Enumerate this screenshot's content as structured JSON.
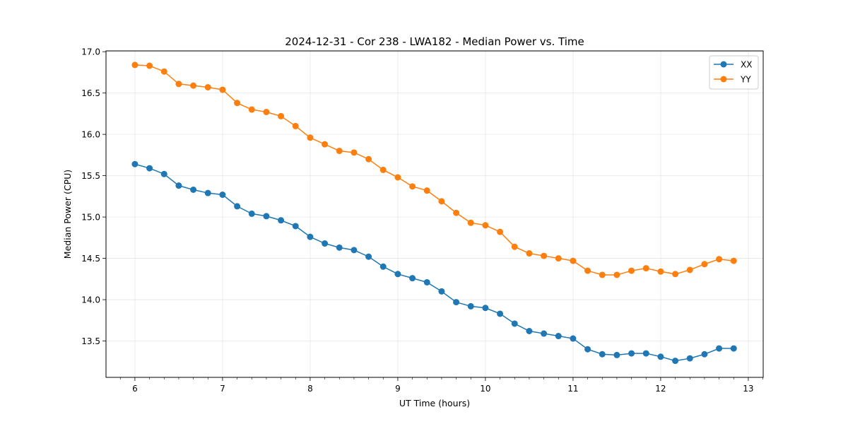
{
  "chart_data": {
    "type": "line",
    "title": "2024-12-31 - Cor 238 - LWA182 - Median Power vs. Time",
    "xlabel": "UT Time (hours)",
    "ylabel": "Median Power (CPU)",
    "xlim": [
      5.67,
      13.17
    ],
    "ylim": [
      13.06,
      17.01
    ],
    "xticks": [
      6,
      7,
      8,
      9,
      10,
      11,
      12,
      13
    ],
    "xtick_labels": [
      "6",
      "7",
      "8",
      "9",
      "10",
      "11",
      "12",
      "13"
    ],
    "yticks": [
      13.5,
      14.0,
      14.5,
      15.0,
      15.5,
      16.0,
      16.5,
      17.0
    ],
    "ytick_labels": [
      "13.5",
      "14.0",
      "14.5",
      "15.0",
      "15.5",
      "16.0",
      "16.5",
      "17.0"
    ],
    "grid": true,
    "legend_position": "top-right",
    "x": [
      6.0,
      6.1667,
      6.3333,
      6.5,
      6.6667,
      6.8333,
      7.0,
      7.1667,
      7.3333,
      7.5,
      7.6667,
      7.8333,
      8.0,
      8.1667,
      8.3333,
      8.5,
      8.6667,
      8.8333,
      9.0,
      9.1667,
      9.3333,
      9.5,
      9.6667,
      9.8333,
      10.0,
      10.1667,
      10.3333,
      10.5,
      10.6667,
      10.8333,
      11.0,
      11.1667,
      11.3333,
      11.5,
      11.6667,
      11.8333,
      12.0,
      12.1667,
      12.3333,
      12.5,
      12.6667,
      12.8333
    ],
    "series": [
      {
        "name": "XX",
        "color": "#1f77b4",
        "values": [
          15.64,
          15.59,
          15.52,
          15.38,
          15.33,
          15.29,
          15.27,
          15.13,
          15.04,
          15.01,
          14.96,
          14.89,
          14.76,
          14.68,
          14.63,
          14.6,
          14.52,
          14.4,
          14.31,
          14.26,
          14.21,
          14.1,
          13.97,
          13.92,
          13.9,
          13.83,
          13.71,
          13.62,
          13.59,
          13.56,
          13.53,
          13.4,
          13.34,
          13.33,
          13.35,
          13.35,
          13.31,
          13.26,
          13.29,
          13.34,
          13.41,
          13.41
        ]
      },
      {
        "name": "YY",
        "color": "#ff7f0e",
        "values": [
          16.84,
          16.83,
          16.76,
          16.61,
          16.59,
          16.57,
          16.54,
          16.38,
          16.3,
          16.27,
          16.22,
          16.1,
          15.96,
          15.88,
          15.8,
          15.78,
          15.7,
          15.57,
          15.48,
          15.37,
          15.32,
          15.19,
          15.05,
          14.93,
          14.9,
          14.82,
          14.64,
          14.56,
          14.53,
          14.5,
          14.47,
          14.35,
          14.3,
          14.3,
          14.35,
          14.38,
          14.34,
          14.31,
          14.36,
          14.43,
          14.49,
          14.47
        ]
      }
    ]
  }
}
